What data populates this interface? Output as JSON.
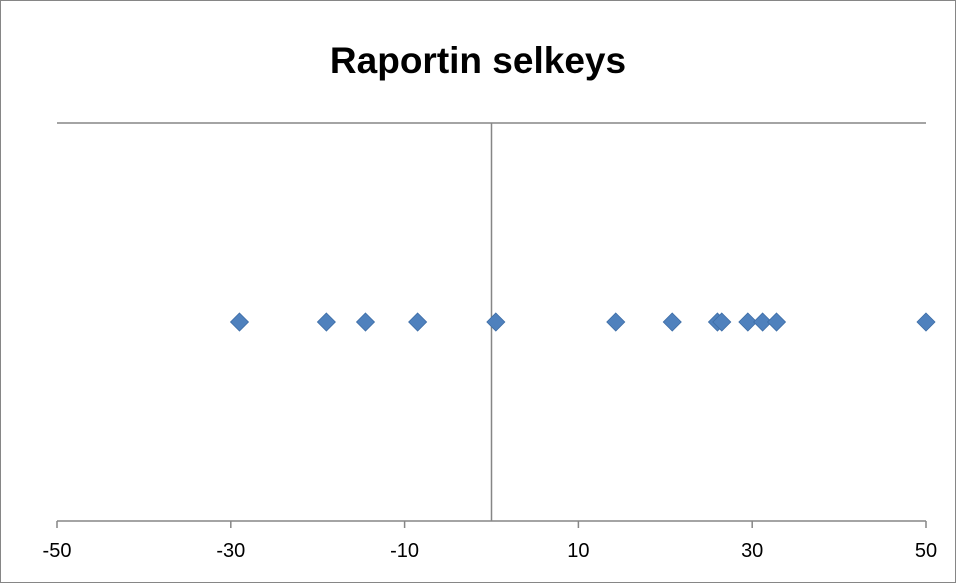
{
  "chart_data": {
    "type": "scatter",
    "title": "Raportin selkeys",
    "xlabel": "",
    "ylabel": "",
    "xlim": [
      -50,
      50
    ],
    "ylim": [
      -1,
      1
    ],
    "xticks": [
      -50,
      -30,
      -10,
      10,
      30,
      50
    ],
    "xtick_labels": [
      "-50",
      "-30",
      "-10",
      "10",
      "30",
      "50"
    ],
    "y_axis_at": 0,
    "grid": "top border line only",
    "legend": "none",
    "series": [
      {
        "marker": "diamond",
        "color": "#4F81BD",
        "points": [
          {
            "x": -29.0,
            "y": 0
          },
          {
            "x": -19.0,
            "y": 0
          },
          {
            "x": -14.5,
            "y": 0
          },
          {
            "x": -8.5,
            "y": 0
          },
          {
            "x": 0.5,
            "y": 0
          },
          {
            "x": 14.3,
            "y": 0
          },
          {
            "x": 20.8,
            "y": 0
          },
          {
            "x": 26.0,
            "y": 0
          },
          {
            "x": 26.5,
            "y": 0
          },
          {
            "x": 29.5,
            "y": 0
          },
          {
            "x": 31.2,
            "y": 0
          },
          {
            "x": 32.8,
            "y": 0
          },
          {
            "x": 50.0,
            "y": 0
          }
        ]
      }
    ]
  }
}
